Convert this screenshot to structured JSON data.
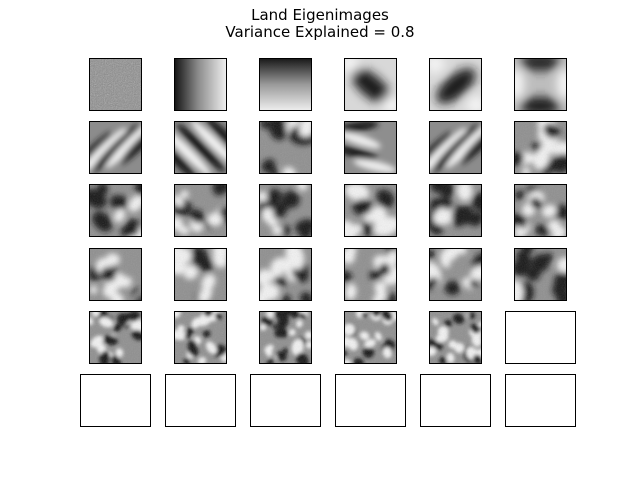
{
  "chart_data": {
    "type": "image_grid",
    "title": "Land Eigenimages",
    "subtitle": "Variance Explained = 0.8",
    "grid": {
      "rows": 6,
      "cols": 6
    },
    "panels_with_images": 29,
    "empty_panels": 7,
    "colormap": "gray",
    "panels": [
      {
        "index": 0,
        "pattern": "noise"
      },
      {
        "index": 1,
        "pattern": "horizontal-gradient"
      },
      {
        "index": 2,
        "pattern": "vertical-gradient"
      },
      {
        "index": 3,
        "pattern": "diagonal-blob"
      },
      {
        "index": 4,
        "pattern": "anti-diagonal-blob"
      },
      {
        "index": 5,
        "pattern": "saddle"
      },
      {
        "index": 6,
        "pattern": "diagonal-stripes"
      },
      {
        "index": 7,
        "pattern": "diagonal-stripes"
      },
      {
        "index": 8,
        "pattern": "blobs"
      },
      {
        "index": 9,
        "pattern": "waves"
      },
      {
        "index": 10,
        "pattern": "diagonal-stripes"
      },
      {
        "index": 11,
        "pattern": "blobs"
      },
      {
        "index": 12,
        "pattern": "blobs"
      },
      {
        "index": 13,
        "pattern": "blobs"
      },
      {
        "index": 14,
        "pattern": "blobs"
      },
      {
        "index": 15,
        "pattern": "blobs"
      },
      {
        "index": 16,
        "pattern": "blobs"
      },
      {
        "index": 17,
        "pattern": "blobs"
      },
      {
        "index": 18,
        "pattern": "blobs"
      },
      {
        "index": 19,
        "pattern": "blobs"
      },
      {
        "index": 20,
        "pattern": "blobs"
      },
      {
        "index": 21,
        "pattern": "blobs"
      },
      {
        "index": 22,
        "pattern": "blobs"
      },
      {
        "index": 23,
        "pattern": "blobs"
      },
      {
        "index": 24,
        "pattern": "fine-blobs"
      },
      {
        "index": 25,
        "pattern": "fine-blobs"
      },
      {
        "index": 26,
        "pattern": "fine-blobs"
      },
      {
        "index": 27,
        "pattern": "fine-blobs"
      },
      {
        "index": 28,
        "pattern": "fine-blobs"
      },
      {
        "index": 29,
        "pattern": "empty"
      },
      {
        "index": 30,
        "pattern": "empty"
      },
      {
        "index": 31,
        "pattern": "empty"
      },
      {
        "index": 32,
        "pattern": "empty"
      },
      {
        "index": 33,
        "pattern": "empty"
      },
      {
        "index": 34,
        "pattern": "empty"
      },
      {
        "index": 35,
        "pattern": "empty"
      }
    ]
  }
}
